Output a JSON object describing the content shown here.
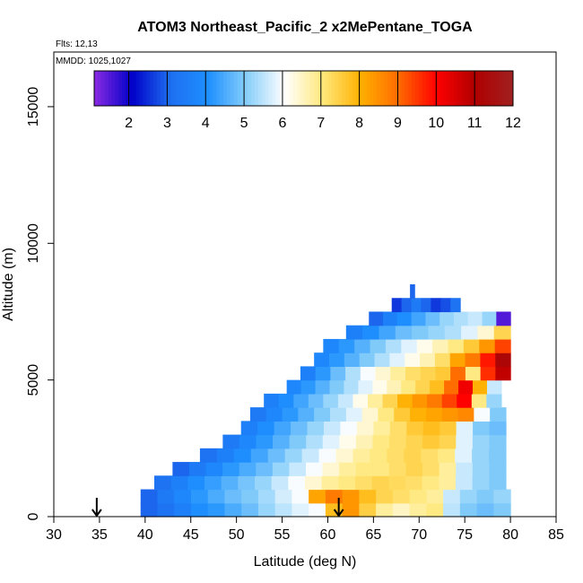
{
  "chart_data": {
    "type": "heatmap",
    "title": "ATOM3 Northeast_Pacific_2 x2MePentane_TOGA",
    "flights_label": "Flts: 12,13",
    "date_label": "MMDD: 1025,1027",
    "xlabel": "Latitude (deg N)",
    "ylabel": "Altitude (m)",
    "xlim": [
      30,
      85
    ],
    "ylim": [
      0,
      17000
    ],
    "x_ticks": [
      "30",
      "35",
      "40",
      "45",
      "50",
      "55",
      "60",
      "65",
      "70",
      "75",
      "80",
      "85"
    ],
    "y_ticks": [
      "0",
      "5000",
      "10000",
      "15000"
    ],
    "colorbar": {
      "min": 1.1,
      "max": 12,
      "labels": [
        "2",
        "3",
        "4",
        "5",
        "6",
        "7",
        "8",
        "9",
        "10",
        "11",
        "12"
      ],
      "stops": [
        "#8a2be2",
        "#0000c8",
        "#1e6ff0",
        "#1e90ff",
        "#87cefa",
        "#ffffff",
        "#ffe87c",
        "#ffb000",
        "#ff6a00",
        "#ff0000",
        "#b00000",
        "#a02020"
      ]
    },
    "markers": [
      {
        "lat": 34.7,
        "label": ""
      },
      {
        "lat": 61.2,
        "label": ""
      }
    ],
    "rows": [
      {
        "alt": [
          0,
          500
        ],
        "lat": [
          39.5,
          80
        ],
        "values": [
          3.0,
          3.2,
          3.6,
          4.0,
          4.2,
          4.5,
          4.8,
          5.2,
          5.5,
          5.8,
          6.0,
          7.8,
          8.4,
          7.5,
          6.8,
          6.5,
          6.8,
          7.0,
          5.5,
          5.0,
          4.8,
          5.0
        ]
      },
      {
        "alt": [
          500,
          1000
        ],
        "lat": [
          39.5,
          80
        ],
        "values": [
          3.0,
          3.4,
          3.8,
          4.2,
          4.5,
          4.8,
          5.0,
          5.3,
          5.7,
          6.0,
          8.2,
          8.8,
          8.4,
          7.8,
          7.4,
          7.2,
          7.0,
          6.8,
          5.6,
          5.2,
          5.0,
          5.2
        ]
      },
      {
        "alt": [
          1000,
          1500
        ],
        "lat": [
          41,
          79.5
        ],
        "values": [
          3.2,
          3.6,
          4.0,
          4.3,
          4.6,
          4.9,
          5.2,
          5.6,
          6.0,
          6.4,
          6.8,
          7.0,
          7.2,
          7.4,
          7.3,
          7.2,
          7.0,
          6.8,
          5.6,
          5.2,
          5.0
        ]
      },
      {
        "alt": [
          1500,
          2000
        ],
        "lat": [
          43,
          79.5
        ],
        "values": [
          3.0,
          3.4,
          3.8,
          4.2,
          4.5,
          4.8,
          5.2,
          5.6,
          6.0,
          6.4,
          6.8,
          7.0,
          7.0,
          7.2,
          7.4,
          7.2,
          6.8,
          5.6,
          5.2,
          5.0
        ]
      },
      {
        "alt": [
          2000,
          2500
        ],
        "lat": [
          46,
          79.5
        ],
        "values": [
          3.2,
          3.6,
          4.0,
          4.4,
          4.8,
          5.2,
          5.6,
          6.0,
          6.4,
          6.8,
          7.0,
          7.2,
          7.4,
          7.2,
          7.0,
          5.8,
          5.2,
          5.0
        ]
      },
      {
        "alt": [
          2500,
          3000
        ],
        "lat": [
          48.5,
          79.5
        ],
        "values": [
          3.4,
          3.8,
          4.2,
          4.6,
          5.0,
          5.4,
          5.8,
          6.2,
          6.6,
          7.0,
          7.2,
          7.4,
          7.6,
          7.4,
          5.8,
          5.2,
          5.0
        ]
      },
      {
        "alt": [
          3000,
          3500
        ],
        "lat": [
          50.5,
          79.5
        ],
        "values": [
          3.6,
          4.0,
          4.4,
          4.8,
          5.2,
          5.6,
          6.0,
          6.4,
          6.8,
          7.2,
          7.6,
          7.8,
          7.6,
          5.8,
          5.0,
          4.8
        ]
      },
      {
        "alt": [
          3500,
          4000
        ],
        "lat": [
          51.5,
          79.5
        ],
        "values": [
          3.4,
          3.8,
          4.2,
          4.6,
          5.0,
          5.4,
          5.8,
          6.4,
          7.0,
          7.6,
          8.0,
          8.2,
          8.4,
          8.6,
          6.0,
          5.0
        ]
      },
      {
        "alt": [
          4000,
          4500
        ],
        "lat": [
          53,
          79
        ],
        "values": [
          3.6,
          4.0,
          4.4,
          4.8,
          5.2,
          5.6,
          6.2,
          6.8,
          7.4,
          8.0,
          8.4,
          8.8,
          9.4,
          10.0,
          7.0,
          5.2
        ]
      },
      {
        "alt": [
          4500,
          5000
        ],
        "lat": [
          55.5,
          79
        ],
        "values": [
          3.8,
          4.2,
          4.6,
          5.0,
          5.4,
          5.8,
          6.2,
          6.6,
          7.0,
          7.4,
          7.8,
          9.0,
          10.2,
          8.0,
          5.6
        ]
      },
      {
        "alt": [
          5000,
          5500
        ],
        "lat": [
          57,
          80
        ],
        "values": [
          3.6,
          4.2,
          4.8,
          5.4,
          6.0,
          6.4,
          6.8,
          7.2,
          7.4,
          7.6,
          9.0,
          7.0,
          9.6,
          10.8
        ]
      },
      {
        "alt": [
          5500,
          6000
        ],
        "lat": [
          58.5,
          80
        ],
        "values": [
          3.8,
          4.2,
          4.6,
          5.0,
          5.4,
          5.8,
          6.2,
          6.6,
          7.2,
          8.2,
          8.8,
          9.8,
          11.2
        ]
      },
      {
        "alt": [
          6000,
          6500
        ],
        "lat": [
          59.5,
          80
        ],
        "values": [
          3.8,
          4.2,
          4.6,
          5.0,
          5.4,
          5.8,
          6.2,
          6.6,
          7.0,
          7.6,
          8.4,
          9.4
        ]
      },
      {
        "alt": [
          6500,
          7000
        ],
        "lat": [
          62,
          80
        ],
        "values": [
          3.6,
          4.0,
          4.4,
          4.8,
          5.0,
          5.2,
          5.4,
          5.8,
          6.4,
          7.4
        ]
      },
      {
        "alt": [
          7000,
          7500
        ],
        "lat": [
          64.5,
          80
        ],
        "values": [
          3.0,
          3.6,
          4.0,
          4.4,
          4.8,
          5.2,
          5.4,
          5.6,
          5.2,
          1.5
        ]
      },
      {
        "alt": [
          7500,
          8000
        ],
        "lat": [
          67,
          74.5
        ],
        "values": [
          2.6,
          3.0,
          3.4,
          3.0,
          2.6,
          2.8,
          3.2
        ]
      },
      {
        "alt": [
          8000,
          8500
        ],
        "lat": [
          69,
          69.5
        ],
        "values": [
          3.0
        ]
      }
    ]
  }
}
